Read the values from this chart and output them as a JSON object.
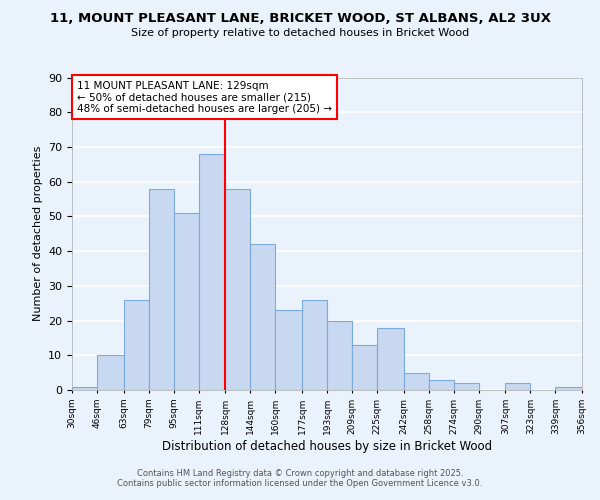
{
  "title": "11, MOUNT PLEASANT LANE, BRICKET WOOD, ST ALBANS, AL2 3UX",
  "subtitle": "Size of property relative to detached houses in Bricket Wood",
  "xlabel": "Distribution of detached houses by size in Bricket Wood",
  "ylabel": "Number of detached properties",
  "bar_color": "#c8d8f0",
  "bar_edge_color": "#7aabdc",
  "vline_x": 128,
  "vline_color": "red",
  "background_color": "#eaf3fb",
  "grid_color": "white",
  "annotation_title": "11 MOUNT PLEASANT LANE: 129sqm",
  "annotation_line1": "← 50% of detached houses are smaller (215)",
  "annotation_line2": "48% of semi-detached houses are larger (205) →",
  "annotation_box_color": "white",
  "annotation_box_edge": "red",
  "bins": [
    30,
    46,
    63,
    79,
    95,
    111,
    128,
    144,
    160,
    177,
    193,
    209,
    225,
    242,
    258,
    274,
    290,
    307,
    323,
    339,
    356
  ],
  "counts": [
    1,
    10,
    26,
    58,
    51,
    68,
    58,
    42,
    23,
    26,
    20,
    13,
    18,
    5,
    3,
    2,
    0,
    2,
    0,
    1
  ],
  "ylim": [
    0,
    90
  ],
  "yticks": [
    0,
    10,
    20,
    30,
    40,
    50,
    60,
    70,
    80,
    90
  ],
  "footer1": "Contains HM Land Registry data © Crown copyright and database right 2025.",
  "footer2": "Contains public sector information licensed under the Open Government Licence v3.0."
}
